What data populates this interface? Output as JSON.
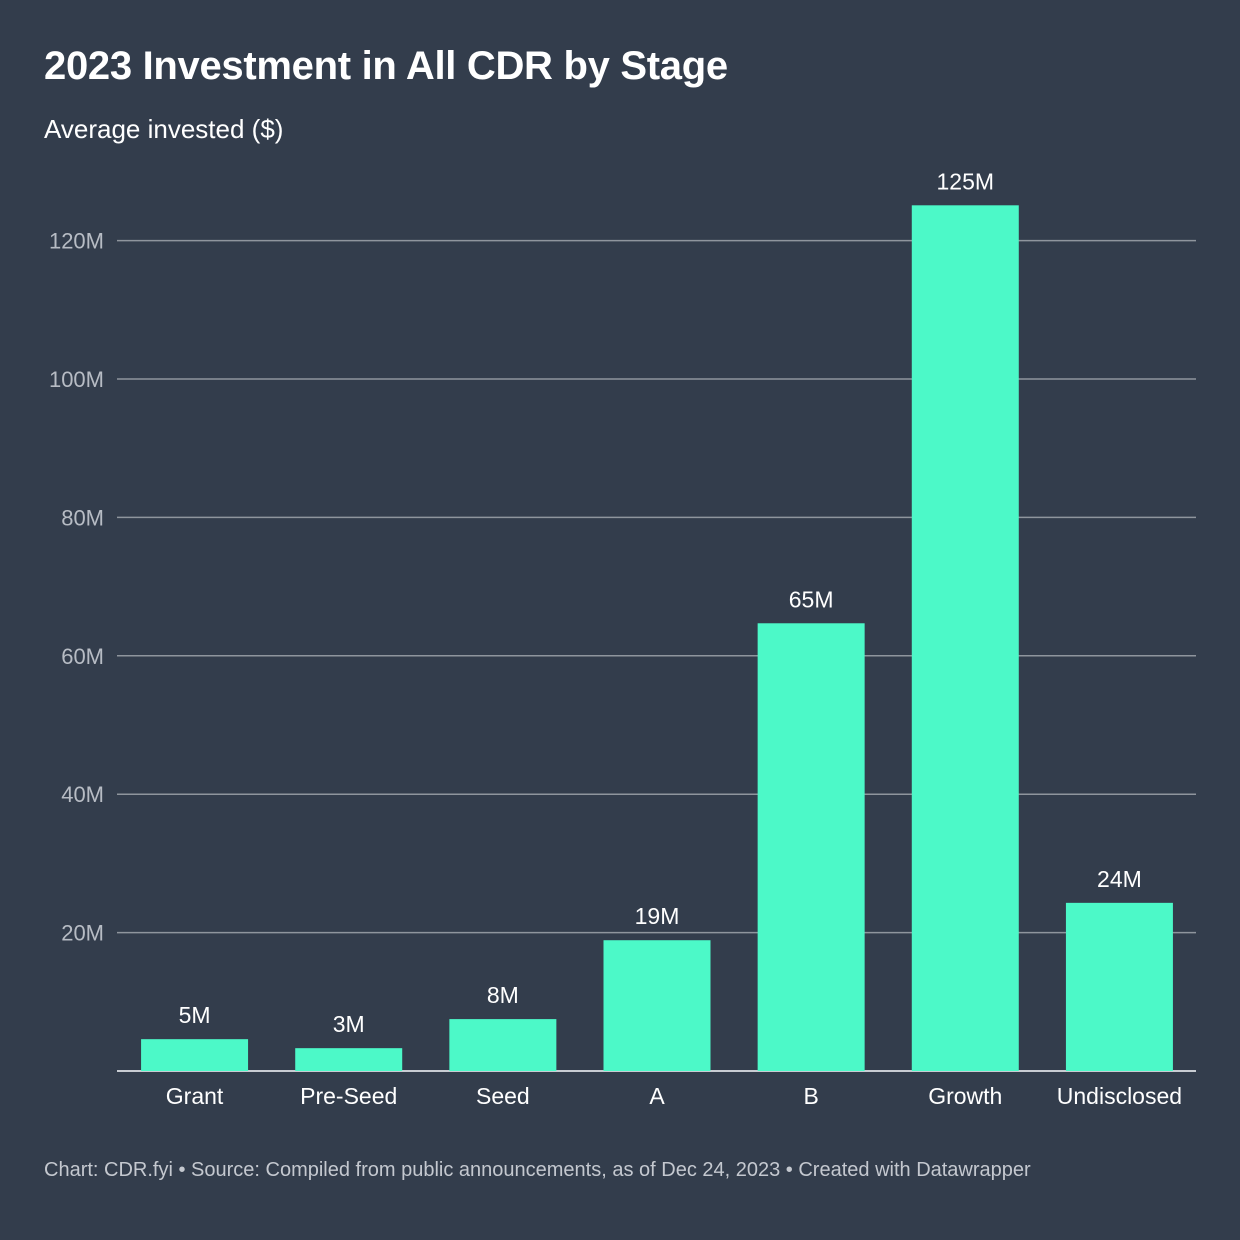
{
  "header": {
    "title": "2023 Investment in All CDR by Stage",
    "subtitle": "Average invested ($)"
  },
  "footer": {
    "text": "Chart: CDR.fyi • Source: Compiled from public announcements, as of Dec 24, 2023 • Created with Datawrapper"
  },
  "colors": {
    "background": "#333d4c",
    "bar": "#4cf9c8"
  },
  "chart_data": {
    "type": "bar",
    "title": "2023 Investment in All CDR by Stage",
    "subtitle": "Average invested ($)",
    "categories": [
      "Grant",
      "Pre-Seed",
      "Seed",
      "A",
      "B",
      "Growth",
      "Undisclosed"
    ],
    "values": [
      4.6,
      3.3,
      7.5,
      18.9,
      64.7,
      125.1,
      24.3
    ],
    "value_labels": [
      "5M",
      "3M",
      "8M",
      "19M",
      "65M",
      "125M",
      "24M"
    ],
    "unit": "M",
    "ylim": [
      0,
      130
    ],
    "yticks": [
      20,
      40,
      60,
      80,
      100,
      120
    ],
    "ytick_labels": [
      "20M",
      "40M",
      "60M",
      "80M",
      "100M",
      "120M"
    ],
    "grid": true,
    "legend": "none"
  }
}
